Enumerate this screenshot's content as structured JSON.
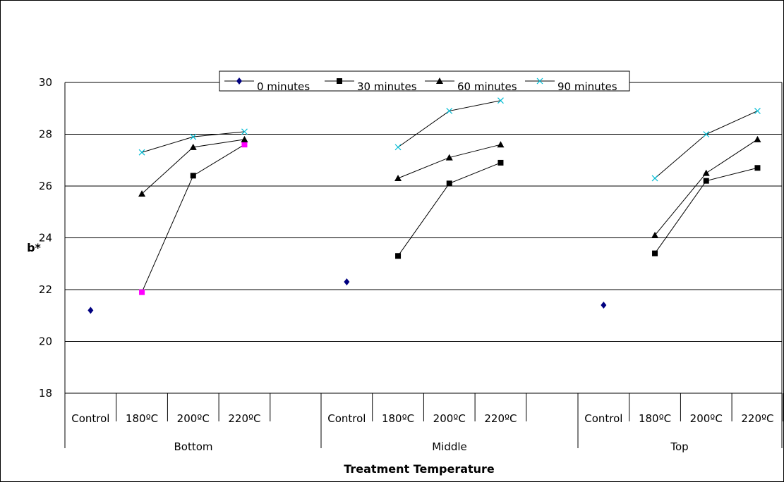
{
  "chart_data": {
    "type": "line",
    "ylabel": "b*",
    "xlabel": "Treatment Temperature",
    "ylim": [
      18,
      30
    ],
    "yticks": [
      18,
      20,
      22,
      24,
      26,
      28,
      30
    ],
    "groups": [
      "Bottom",
      "Middle",
      "Top"
    ],
    "categories": [
      "Control",
      "180ºC",
      "200ºC",
      "220ºC"
    ],
    "grid": true,
    "legend_position": "top",
    "series": [
      {
        "name": "0 minutes",
        "marker": "diamond",
        "color": "#000080",
        "values": [
          [
            21.2,
            null,
            null,
            null
          ],
          [
            22.3,
            null,
            null,
            null
          ],
          [
            21.4,
            null,
            null,
            null
          ]
        ]
      },
      {
        "name": "30 minutes",
        "marker": "square",
        "color": "#000000",
        "highlight_color": "#ff00ff",
        "values": [
          [
            null,
            21.9,
            26.4,
            27.6
          ],
          [
            null,
            23.3,
            26.1,
            26.9
          ],
          [
            null,
            23.4,
            26.2,
            26.7
          ]
        ]
      },
      {
        "name": "60 minutes",
        "marker": "triangle",
        "color": "#000000",
        "values": [
          [
            null,
            25.7,
            27.5,
            27.8
          ],
          [
            null,
            26.3,
            27.1,
            27.6
          ],
          [
            null,
            24.1,
            26.5,
            27.8
          ]
        ]
      },
      {
        "name": "90 minutes",
        "marker": "x",
        "color": "#00bcd4",
        "values": [
          [
            null,
            27.3,
            27.9,
            28.1
          ],
          [
            null,
            27.5,
            28.9,
            29.3
          ],
          [
            null,
            26.3,
            28.0,
            28.9
          ]
        ]
      }
    ]
  }
}
